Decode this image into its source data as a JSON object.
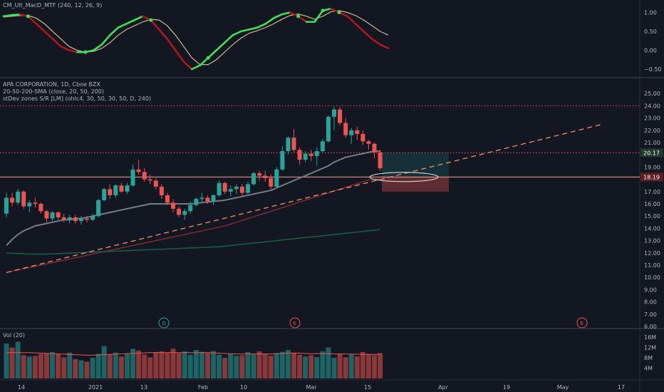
{
  "panels": {
    "macd": {
      "title": "CM_Ult_MacD_MTF (240, 12, 26, 9)"
    },
    "price": {
      "title": "APA CORPORATION, 1D, Cboe BZX",
      "indicator1": "20-50-200-SMA (close, 20, 50, 200)",
      "indicator2": "stDev zones S/R [LM] (ohlc4, 30, 50, 30, 50, D, 240)"
    },
    "volume": {
      "title": "Vol (20)"
    }
  },
  "price_badges": {
    "upper": "20.17",
    "lower": "18.19"
  },
  "events": [
    {
      "letter": "D",
      "color": "#26a69a"
    },
    {
      "letter": "E",
      "color": "#ef5350"
    },
    {
      "letter": "E",
      "color": "#ef5350"
    }
  ],
  "colors": {
    "up": "#26a69a",
    "down": "#ef5350",
    "background": "#131722",
    "sma20": "#787b86",
    "sma50": "#7e2b35",
    "sma200": "#1b5e47"
  },
  "chart_data": [
    {
      "type": "line",
      "title": "CM_Ult_MacD_MTF (240, 12, 26, 9)",
      "ylim": [
        -0.6,
        1.2
      ],
      "y_ticks": [
        "1.00",
        "0.50",
        "0.00",
        "−0.50"
      ],
      "series": [
        {
          "name": "MACD",
          "values": [
            0.9,
            0.93,
            0.95,
            0.9,
            0.7,
            0.5,
            0.3,
            0.1,
            0.0,
            -0.05,
            -0.05,
            0.0,
            0.15,
            0.4,
            0.6,
            0.7,
            0.8,
            0.9,
            0.8,
            0.55,
            0.3,
            0.0,
            -0.3,
            -0.5,
            -0.4,
            -0.2,
            0.0,
            0.2,
            0.4,
            0.5,
            0.55,
            0.6,
            0.7,
            0.85,
            0.95,
            1.0,
            0.9,
            0.75,
            0.75,
            1.05,
            1.1,
            1.0,
            0.9,
            0.7,
            0.5,
            0.3,
            0.15,
            0.05
          ]
        },
        {
          "name": "Signal",
          "values": [
            0.88,
            0.9,
            0.92,
            0.92,
            0.85,
            0.7,
            0.5,
            0.3,
            0.1,
            0.0,
            -0.05,
            -0.03,
            0.05,
            0.2,
            0.4,
            0.55,
            0.65,
            0.75,
            0.82,
            0.8,
            0.65,
            0.4,
            0.1,
            -0.2,
            -0.38,
            -0.38,
            -0.25,
            -0.05,
            0.15,
            0.32,
            0.45,
            0.52,
            0.6,
            0.7,
            0.82,
            0.92,
            0.96,
            0.9,
            0.82,
            0.9,
            1.02,
            1.05,
            1.0,
            0.92,
            0.8,
            0.65,
            0.5,
            0.4
          ]
        }
      ]
    },
    {
      "type": "candlestick",
      "title": "APA CORPORATION, 1D, Cboe BZX",
      "ylim": [
        6,
        25.5
      ],
      "y_ticks": [
        "25.00",
        "24.00",
        "23.00",
        "22.00",
        "21.00",
        "20.17",
        "19.00",
        "18.19",
        "17.00",
        "16.00",
        "15.00",
        "14.00",
        "13.00",
        "12.00",
        "11.00",
        "10.00",
        "9.00",
        "8.00",
        "7.00",
        "6.00"
      ],
      "x_ticks": [
        "14",
        "2021",
        "13",
        "Feb",
        "10",
        "Mar",
        "15",
        "Apr",
        "19",
        "May",
        "17"
      ],
      "ohlc": [
        [
          15.2,
          16.9,
          14.9,
          16.5
        ],
        [
          16.5,
          16.9,
          15.8,
          16.1
        ],
        [
          16.1,
          17.2,
          15.9,
          17.0
        ],
        [
          17.0,
          17.1,
          15.6,
          15.8
        ],
        [
          15.8,
          16.3,
          15.3,
          16.1
        ],
        [
          16.1,
          16.5,
          15.7,
          16.0
        ],
        [
          16.0,
          16.1,
          15.2,
          15.4
        ],
        [
          15.4,
          15.5,
          14.5,
          14.8
        ],
        [
          14.8,
          15.4,
          14.6,
          15.3
        ],
        [
          15.3,
          15.4,
          14.7,
          14.9
        ],
        [
          14.9,
          15.2,
          14.5,
          14.7
        ],
        [
          14.7,
          15.1,
          14.4,
          14.9
        ],
        [
          14.9,
          15.1,
          14.4,
          14.6
        ],
        [
          14.6,
          15.0,
          14.3,
          14.8
        ],
        [
          14.8,
          15.0,
          14.5,
          14.7
        ],
        [
          14.7,
          15.2,
          14.6,
          15.0
        ],
        [
          15.0,
          16.4,
          14.9,
          16.3
        ],
        [
          16.3,
          17.3,
          16.2,
          17.2
        ],
        [
          17.2,
          17.6,
          16.4,
          16.7
        ],
        [
          16.7,
          17.6,
          16.5,
          17.5
        ],
        [
          17.5,
          17.7,
          16.9,
          17.0
        ],
        [
          17.0,
          17.7,
          16.8,
          17.5
        ],
        [
          17.5,
          19.2,
          17.4,
          18.8
        ],
        [
          18.8,
          19.6,
          18.4,
          18.6
        ],
        [
          18.6,
          18.9,
          17.8,
          18.0
        ],
        [
          18.0,
          18.4,
          17.6,
          17.9
        ],
        [
          17.9,
          18.1,
          17.2,
          17.4
        ],
        [
          17.4,
          17.6,
          16.4,
          16.7
        ],
        [
          16.7,
          16.9,
          15.9,
          16.1
        ],
        [
          16.1,
          16.4,
          15.3,
          15.6
        ],
        [
          15.6,
          15.8,
          14.9,
          15.1
        ],
        [
          15.1,
          15.6,
          14.7,
          15.4
        ],
        [
          15.4,
          16.2,
          15.2,
          15.9
        ],
        [
          15.9,
          16.5,
          15.8,
          16.4
        ],
        [
          16.4,
          16.9,
          16.1,
          16.5
        ],
        [
          16.5,
          16.7,
          16.0,
          16.2
        ],
        [
          16.2,
          16.8,
          15.9,
          16.7
        ],
        [
          16.7,
          17.9,
          16.6,
          17.7
        ],
        [
          17.7,
          17.8,
          16.8,
          17.0
        ],
        [
          17.0,
          17.5,
          16.6,
          17.2
        ],
        [
          17.2,
          17.6,
          16.8,
          17.4
        ],
        [
          17.4,
          17.6,
          16.6,
          16.9
        ],
        [
          16.9,
          17.8,
          16.8,
          17.6
        ],
        [
          17.6,
          18.6,
          17.5,
          18.5
        ],
        [
          18.5,
          18.7,
          17.9,
          18.3
        ],
        [
          18.3,
          18.7,
          17.8,
          18.1
        ],
        [
          18.1,
          18.4,
          17.2,
          17.4
        ],
        [
          17.4,
          19.0,
          17.3,
          18.8
        ],
        [
          18.8,
          20.7,
          18.7,
          20.3
        ],
        [
          20.3,
          21.5,
          20.0,
          21.4
        ],
        [
          21.4,
          22.1,
          20.2,
          20.4
        ],
        [
          20.4,
          20.6,
          19.2,
          19.6
        ],
        [
          19.6,
          20.3,
          19.4,
          20.1
        ],
        [
          20.1,
          20.4,
          19.5,
          19.9
        ],
        [
          19.9,
          20.6,
          19.1,
          20.3
        ],
        [
          20.3,
          21.3,
          20.2,
          21.1
        ],
        [
          21.1,
          23.2,
          21.0,
          23.1
        ],
        [
          23.1,
          23.9,
          22.0,
          23.7
        ],
        [
          23.7,
          23.9,
          22.4,
          22.6
        ],
        [
          22.6,
          23.0,
          21.4,
          21.6
        ],
        [
          21.6,
          22.2,
          20.9,
          22.0
        ],
        [
          22.0,
          22.3,
          21.2,
          21.7
        ],
        [
          21.7,
          22.0,
          20.8,
          21.1
        ],
        [
          21.1,
          21.2,
          20.4,
          20.9
        ],
        [
          20.9,
          21.0,
          19.7,
          20.2
        ],
        [
          20.2,
          20.4,
          18.7,
          18.9
        ]
      ],
      "series": [
        {
          "name": "SMA 20",
          "values": [
            12.6,
            13.1,
            13.5,
            13.8,
            14.0,
            14.2,
            14.3,
            14.4,
            14.5,
            14.6,
            14.7,
            14.7,
            14.8,
            14.8,
            14.9,
            15.0,
            15.1,
            15.2,
            15.3,
            15.4,
            15.5,
            15.6,
            15.7,
            15.8,
            15.9,
            16.0,
            16.0,
            16.0,
            16.0,
            16.0,
            16.0,
            16.0,
            16.0,
            16.05,
            16.1,
            16.15,
            16.2,
            16.25,
            16.3,
            16.4,
            16.5,
            16.6,
            16.7,
            16.8,
            16.9,
            17.0,
            17.1,
            17.3,
            17.5,
            17.7,
            17.9,
            18.1,
            18.3,
            18.5,
            18.7,
            18.9,
            19.1,
            19.4,
            19.6,
            19.8,
            19.9,
            20.0,
            20.1,
            20.2,
            20.3,
            20.3
          ]
        },
        {
          "name": "SMA 50",
          "values": [
            10.4,
            10.5,
            10.6,
            10.7,
            10.8,
            10.9,
            11.0,
            11.1,
            11.2,
            11.3,
            11.4,
            11.5,
            11.6,
            11.7,
            11.8,
            11.9,
            12.0,
            12.1,
            12.2,
            12.3,
            12.4,
            12.5,
            12.6,
            12.7,
            12.8,
            12.9,
            13.0,
            13.1,
            13.2,
            13.3,
            13.4,
            13.5,
            13.6,
            13.7,
            13.8,
            13.9,
            14.0,
            14.1,
            14.2,
            14.35,
            14.5,
            14.65,
            14.8,
            14.95,
            15.1,
            15.25,
            15.4,
            15.55,
            15.7,
            15.85,
            16.0,
            16.15,
            16.3,
            16.45,
            16.6,
            16.75,
            16.9,
            17.05,
            17.2,
            17.35,
            17.5,
            17.65,
            17.8,
            17.95,
            18.0,
            18.05
          ]
        },
        {
          "name": "SMA 200",
          "values": [
            12.0,
            11.97,
            11.95,
            11.92,
            11.9,
            11.9,
            11.9,
            11.9,
            11.92,
            11.94,
            11.96,
            11.98,
            12.0,
            12.02,
            12.04,
            12.06,
            12.08,
            12.1,
            12.12,
            12.14,
            12.16,
            12.18,
            12.2,
            12.22,
            12.24,
            12.26,
            12.28,
            12.3,
            12.32,
            12.34,
            12.36,
            12.38,
            12.4,
            12.42,
            12.44,
            12.46,
            12.48,
            12.5,
            12.55,
            12.6,
            12.65,
            12.7,
            12.75,
            12.8,
            12.85,
            12.9,
            12.95,
            13.0,
            13.05,
            13.1,
            13.15,
            13.2,
            13.25,
            13.3,
            13.35,
            13.4,
            13.45,
            13.5,
            13.55,
            13.6,
            13.65,
            13.7,
            13.75,
            13.8,
            13.85,
            13.9
          ]
        }
      ],
      "annotations": {
        "resistance_lines": [
          24.0,
          20.17
        ],
        "support_line": 18.19,
        "trendline": {
          "from": [
            0,
            10.4
          ],
          "to": [
            66,
            18.1
          ],
          "extends_to": 22.5
        },
        "target_zone": [
          18.19,
          20.17
        ],
        "stop_zone": [
          17.0,
          18.19
        ]
      }
    },
    {
      "type": "bar",
      "title": "Vol (20)",
      "ylim": [
        0,
        17
      ],
      "y_ticks": [
        "16M",
        "12M",
        "8M",
        "4M"
      ],
      "values": [
        13.5,
        12.0,
        14.2,
        9.0,
        8.5,
        8.7,
        9.5,
        9.8,
        10.2,
        9.5,
        8.2,
        10.0,
        7.5,
        7.0,
        6.5,
        8.0,
        9.5,
        12.5,
        9.2,
        10.0,
        8.5,
        9.7,
        11.5,
        10.8,
        9.3,
        8.2,
        10.2,
        10.5,
        10.0,
        11.5,
        9.8,
        10.5,
        9.2,
        11.0,
        10.3,
        9.8,
        10.6,
        9.2,
        8.0,
        9.5,
        8.8,
        9.0,
        10.2,
        9.3,
        10.5,
        9.5,
        8.8,
        9.8,
        10.3,
        11.0,
        10.0,
        9.2,
        8.5,
        9.0,
        8.3,
        10.5,
        12.0,
        8.0,
        9.5,
        8.2,
        9.3,
        8.6,
        10.2,
        9.5,
        9.0,
        9.8
      ],
      "series": [
        {
          "name": "Vol MA",
          "values": [
            10.0,
            10.0,
            10.0,
            10.0,
            10.0,
            9.9,
            9.8,
            9.7,
            9.6,
            9.5,
            9.4,
            9.3,
            9.2,
            9.1,
            9.0,
            9.0,
            9.1,
            9.2,
            9.3,
            9.4,
            9.5,
            9.6,
            9.7,
            9.8,
            9.9,
            10.0,
            10.0,
            10.0,
            10.0,
            10.0,
            10.0,
            10.0,
            10.0,
            10.0,
            10.0,
            10.0,
            9.9,
            9.8,
            9.7,
            9.6,
            9.5,
            9.5,
            9.5,
            9.5,
            9.5,
            9.5,
            9.5,
            9.6,
            9.7,
            9.8,
            9.8,
            9.8,
            9.7,
            9.6,
            9.6,
            9.6,
            9.6,
            9.5,
            9.5,
            9.5,
            9.4,
            9.4,
            9.3,
            9.3,
            9.3,
            9.3
          ]
        }
      ]
    }
  ]
}
